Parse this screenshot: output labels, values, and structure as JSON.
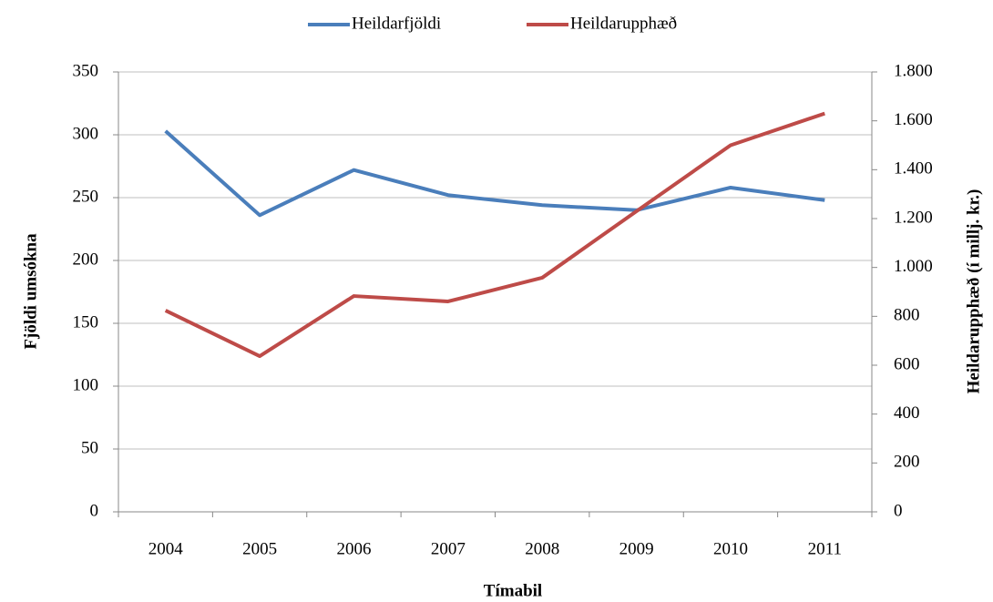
{
  "chart_data": {
    "type": "line",
    "categories": [
      "2004",
      "2005",
      "2006",
      "2007",
      "2008",
      "2009",
      "2010",
      "2011"
    ],
    "series": [
      {
        "name": "Heildarfjöldi",
        "color": "#4a7ebb",
        "values": [
          303,
          236,
          272,
          252,
          244,
          240,
          258,
          248
        ]
      },
      {
        "name": "Heildarupphæð",
        "color": "#be4b48",
        "axis": "y2",
        "values": [
          824,
          637,
          883,
          861,
          958,
          1230,
          1500,
          1630
        ]
      }
    ],
    "xlabel": "Tímabil",
    "ylabel": "Fjöldi umsókna",
    "y2label": "Heildarupphæð (í millj. kr.)",
    "ylim": [
      0,
      350
    ],
    "yticks": [
      0,
      50,
      100,
      150,
      200,
      250,
      300,
      350
    ],
    "y2lim": [
      0,
      1800
    ],
    "y2ticks": [
      0,
      200,
      400,
      600,
      800,
      {
        "value": 1000,
        "label": "1.000"
      },
      {
        "value": 1200,
        "label": "1.200"
      },
      {
        "value": 1400,
        "label": "1.400"
      },
      {
        "value": 1600,
        "label": "1.600"
      },
      {
        "value": 1800,
        "label": "1.800"
      }
    ],
    "grid": true,
    "legend": "top"
  }
}
